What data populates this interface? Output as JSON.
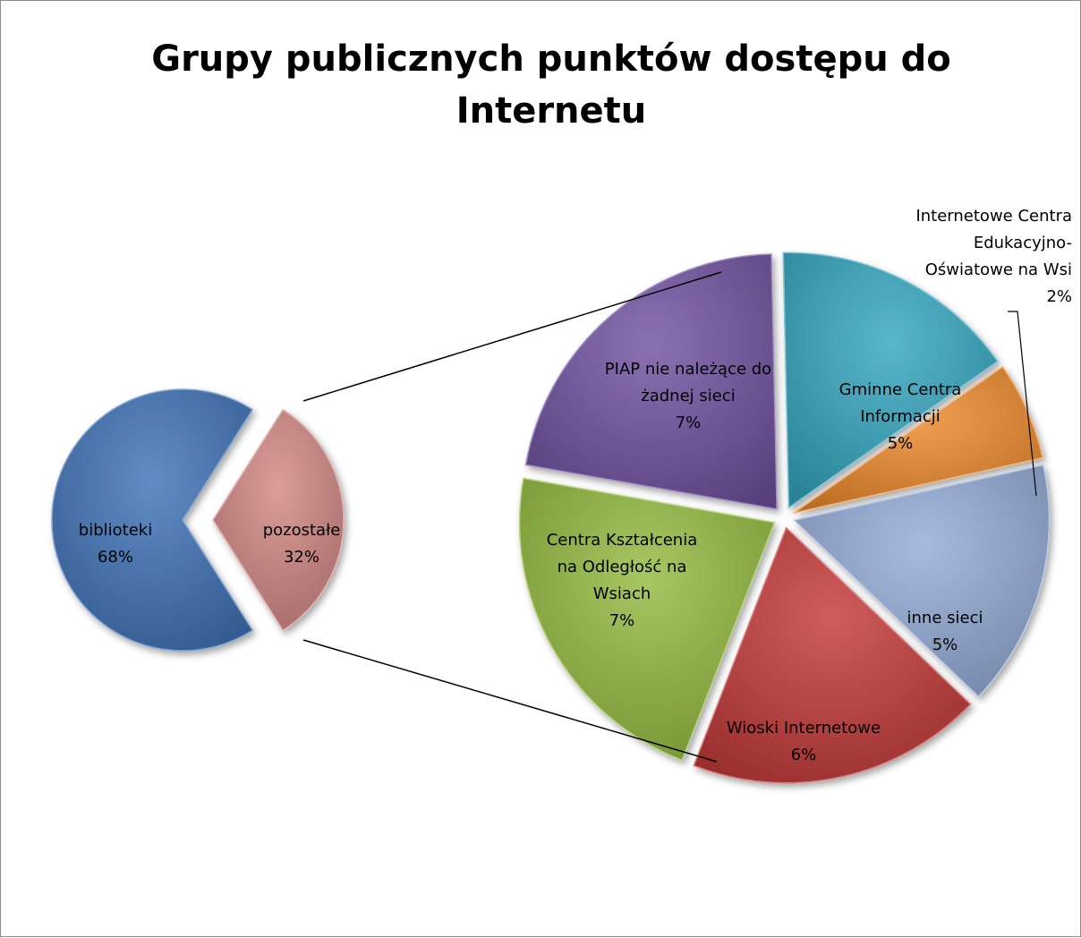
{
  "chart_data": {
    "type": "pie",
    "title_lines": [
      "Grupy publicznych punktów dostępu do",
      "Internetu"
    ],
    "main": [
      {
        "label_lines": [
          "biblioteki"
        ],
        "value": 68,
        "value_label": "68%",
        "color": "#3f73b8"
      },
      {
        "label_lines": [
          "pozostałe"
        ],
        "value": 32,
        "value_label": "32%",
        "color": "#d28784"
      }
    ],
    "secondary": [
      {
        "label_lines": [
          "PIAP nie należące do",
          "żadnej sieci"
        ],
        "value": 7,
        "value_label": "7%",
        "color": "#7152a1"
      },
      {
        "label_lines": [
          "Gminne Centra",
          "Informacji"
        ],
        "value": 5,
        "value_label": "5%",
        "color": "#35a7c0"
      },
      {
        "label_lines": [
          "Internetowe Centra",
          "Edukacyjno-",
          "Oświatowe na Wsi"
        ],
        "value": 2,
        "value_label": "2%",
        "color": "#ee8a2c"
      },
      {
        "label_lines": [
          "inne sieci"
        ],
        "value": 5,
        "value_label": "5%",
        "color": "#93acd8"
      },
      {
        "label_lines": [
          "Wioski Internetowe"
        ],
        "value": 6,
        "value_label": "6%",
        "color": "#c43a38"
      },
      {
        "label_lines": [
          "Centra Kształcenia",
          "na Odległość na",
          "Wsiach"
        ],
        "value": 7,
        "value_label": "7%",
        "color": "#93bb3f"
      }
    ]
  }
}
